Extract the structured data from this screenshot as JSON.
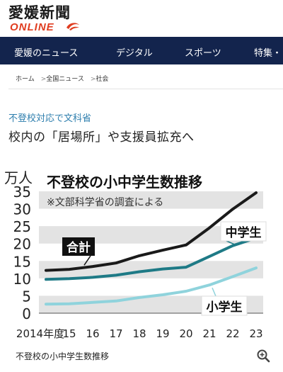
{
  "site": {
    "logo_text": "愛媛新聞",
    "logo_sub": "ONLINE"
  },
  "nav": {
    "items": [
      "愛媛のニュース",
      "デジタル",
      "スポーツ",
      "特集・"
    ]
  },
  "breadcrumb": [
    "ホーム",
    "全国ニュース",
    "社会"
  ],
  "article": {
    "kicker": "不登校対応で文科省",
    "headline": "校内の「居場所」や支援員拡充へ",
    "image_caption": "不登校の小中学生数推移"
  },
  "colors": {
    "nav_bg": "#13244d",
    "kicker": "#2f7fae",
    "logo_red": "#e03c1f",
    "total_line": "#1a1a1a",
    "middle_line": "#1e7a86",
    "elementary_line": "#8fd3dc"
  },
  "icons": {
    "zoom": "zoom-in-icon"
  },
  "chart_data": {
    "type": "line",
    "title": "不登校の小中学生数推移",
    "subtitle": "※文部科学省の調査による",
    "ylabel": "万人",
    "xlabel": "",
    "ylim": [
      0,
      35
    ],
    "yticks": [
      0,
      5,
      10,
      15,
      20,
      25,
      30,
      35
    ],
    "x": [
      "2014年度",
      "15",
      "16",
      "17",
      "18",
      "19",
      "20",
      "21",
      "22",
      "23"
    ],
    "series": [
      {
        "name": "合計",
        "values": [
          12.3,
          12.6,
          13.4,
          14.4,
          16.5,
          18.1,
          19.6,
          24.5,
          29.9,
          34.6
        ]
      },
      {
        "name": "中学生",
        "values": [
          9.7,
          9.9,
          10.3,
          10.9,
          11.9,
          12.7,
          13.2,
          16.3,
          19.4,
          21.6
        ]
      },
      {
        "name": "小学生",
        "values": [
          2.6,
          2.7,
          3.1,
          3.5,
          4.5,
          5.3,
          6.3,
          8.1,
          10.5,
          13.0
        ]
      }
    ],
    "legend_placement": "inline",
    "grid": "banded"
  }
}
